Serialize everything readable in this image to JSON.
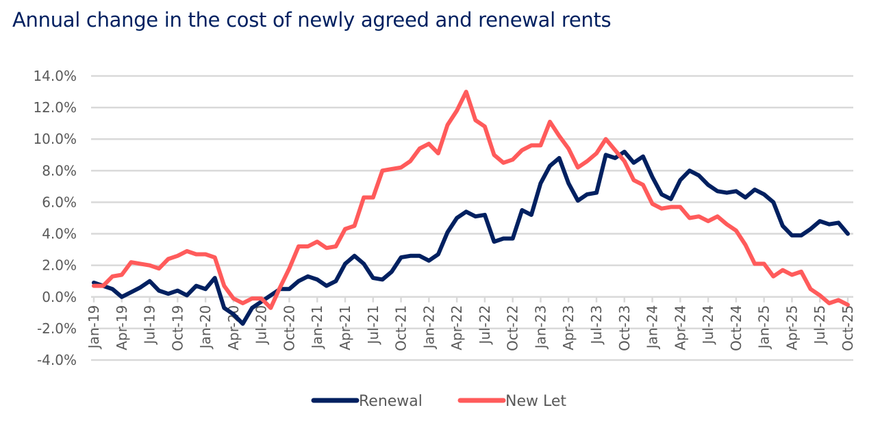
{
  "chart_data": {
    "type": "line",
    "title": "Annual change in the cost of newly agreed and renewal rents",
    "xlabel": "",
    "ylabel": "",
    "ylim": [
      -4.0,
      14.0
    ],
    "y_ticks": [
      "14.0%",
      "12.0%",
      "10.0%",
      "8.0%",
      "6.0%",
      "4.0%",
      "2.0%",
      "0.0%",
      "-2.0%",
      "-4.0%"
    ],
    "y_tick_values": [
      14,
      12,
      10,
      8,
      6,
      4,
      2,
      0,
      -2,
      -4
    ],
    "grid": true,
    "legend_position": "bottom",
    "x": [
      "Jan-19",
      "Feb-19",
      "Mar-19",
      "Apr-19",
      "May-19",
      "Jun-19",
      "Jul-19",
      "Aug-19",
      "Sep-19",
      "Oct-19",
      "Nov-19",
      "Dec-19",
      "Jan-20",
      "Feb-20",
      "Mar-20",
      "Apr-20",
      "May-20",
      "Jun-20",
      "Jul-20",
      "Aug-20",
      "Sep-20",
      "Oct-20",
      "Nov-20",
      "Dec-20",
      "Jan-21",
      "Feb-21",
      "Mar-21",
      "Apr-21",
      "May-21",
      "Jun-21",
      "Jul-21",
      "Aug-21",
      "Sep-21",
      "Oct-21",
      "Nov-21",
      "Dec-21",
      "Jan-22",
      "Feb-22",
      "Mar-22",
      "Apr-22",
      "May-22",
      "Jun-22",
      "Jul-22",
      "Aug-22",
      "Sep-22",
      "Oct-22",
      "Nov-22",
      "Dec-22",
      "Jan-23",
      "Feb-23",
      "Mar-23",
      "Apr-23",
      "May-23",
      "Jun-23",
      "Jul-23",
      "Aug-23",
      "Sep-23",
      "Oct-23",
      "Nov-23",
      "Dec-23",
      "Jan-24",
      "Feb-24",
      "Mar-24",
      "Apr-24",
      "May-24",
      "Jun-24",
      "Jul-24",
      "Aug-24",
      "Sep-24",
      "Oct-24",
      "Nov-24",
      "Dec-24",
      "Jan-25",
      "Feb-25",
      "Mar-25",
      "Apr-25",
      "May-25",
      "Jun-25",
      "Jul-25",
      "Aug-25",
      "Sep-25",
      "Oct-25"
    ],
    "x_tick_labels": [
      "Jan-19",
      "Apr-19",
      "Jul-19",
      "Oct-19",
      "Jan-20",
      "Apr-20",
      "Jul-20",
      "Oct-20",
      "Jan-21",
      "Apr-21",
      "Jul-21",
      "Oct-21",
      "Jan-22",
      "Apr-22",
      "Jul-22",
      "Oct-22",
      "Jan-23",
      "Apr-23",
      "Jul-23",
      "Oct-23",
      "Jan-24",
      "Apr-24",
      "Jul-24",
      "Oct-24",
      "Jan-25",
      "Apr-25",
      "Jul-25",
      "Oct-25"
    ],
    "series": [
      {
        "name": "Renewal",
        "color": "#002060",
        "values": [
          0.9,
          0.7,
          0.5,
          0.0,
          0.3,
          0.6,
          1.0,
          0.4,
          0.2,
          0.4,
          0.1,
          0.7,
          0.5,
          1.2,
          -0.7,
          -1.1,
          -1.7,
          -0.7,
          -0.3,
          0.1,
          0.5,
          0.5,
          1.0,
          1.3,
          1.1,
          0.7,
          1.0,
          2.1,
          2.6,
          2.1,
          1.2,
          1.1,
          1.6,
          2.5,
          2.6,
          2.6,
          2.3,
          2.7,
          4.1,
          5.0,
          5.4,
          5.1,
          5.2,
          3.5,
          3.7,
          3.7,
          5.5,
          5.2,
          7.2,
          8.3,
          8.8,
          7.2,
          6.1,
          6.5,
          6.6,
          9.0,
          8.8,
          9.2,
          8.5,
          8.9,
          7.6,
          6.5,
          6.2,
          7.4,
          8.0,
          7.7,
          7.1,
          6.7,
          6.6,
          6.7,
          6.3,
          6.8,
          6.5,
          6.0,
          4.5,
          3.9,
          3.9,
          4.3,
          4.8,
          4.6,
          4.7,
          4.0
        ]
      },
      {
        "name": "New Let",
        "color": "#FF5B5B",
        "values": [
          0.7,
          0.7,
          1.3,
          1.4,
          2.2,
          2.1,
          2.0,
          1.8,
          2.4,
          2.6,
          2.9,
          2.7,
          2.7,
          2.5,
          0.7,
          -0.1,
          -0.4,
          -0.1,
          -0.1,
          -0.7,
          0.6,
          1.8,
          3.2,
          3.2,
          3.5,
          3.1,
          3.2,
          4.3,
          4.5,
          6.3,
          6.3,
          8.0,
          8.1,
          8.2,
          8.6,
          9.4,
          9.7,
          9.1,
          10.9,
          11.8,
          13.0,
          11.2,
          10.8,
          9.0,
          8.5,
          8.7,
          9.3,
          9.6,
          9.6,
          11.1,
          10.2,
          9.4,
          8.2,
          8.6,
          9.1,
          10.0,
          9.3,
          8.6,
          7.4,
          7.1,
          5.9,
          5.6,
          5.7,
          5.7,
          5.0,
          5.1,
          4.8,
          5.1,
          4.6,
          4.2,
          3.3,
          2.1,
          2.1,
          1.3,
          1.7,
          1.4,
          1.6,
          0.5,
          0.1,
          -0.4,
          -0.2,
          -0.5
        ]
      }
    ]
  }
}
